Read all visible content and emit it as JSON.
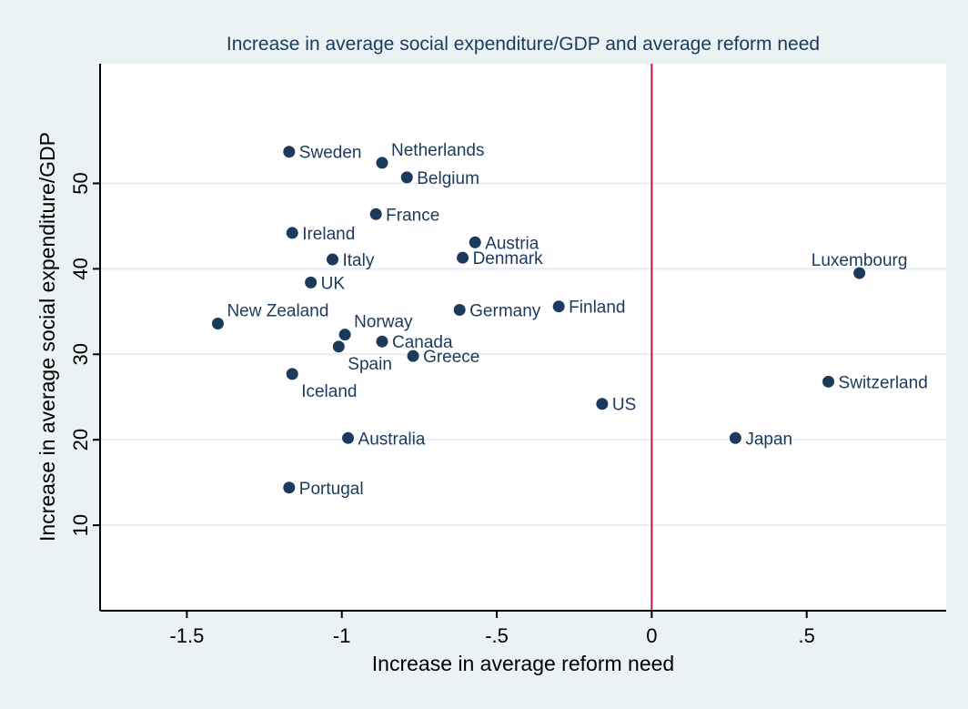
{
  "chart_data": {
    "type": "scatter",
    "title": "Increase in average social expenditure/GDP and average reform need",
    "xlabel": "Increase in average reform need",
    "ylabel": "Increase in average social expenditure/GDP",
    "xlim": [
      -1.78,
      0.95
    ],
    "ylim": [
      0,
      64
    ],
    "xticks": [
      {
        "value": -1.5,
        "label": "-1.5"
      },
      {
        "value": -1,
        "label": "-1"
      },
      {
        "value": -0.5,
        "label": "-.5"
      },
      {
        "value": 0,
        "label": "0"
      },
      {
        "value": 0.5,
        "label": ".5"
      }
    ],
    "yticks": [
      {
        "value": 10,
        "label": "10"
      },
      {
        "value": 20,
        "label": "20"
      },
      {
        "value": 30,
        "label": "30"
      },
      {
        "value": 40,
        "label": "40"
      },
      {
        "value": 50,
        "label": "50"
      }
    ],
    "grid": "horizontal",
    "reference_line": {
      "x": 0,
      "color": "#c0163c"
    },
    "colors": {
      "marker": "#1b3a5c",
      "label": "#1b3a5c",
      "plot_bg": "#ffffff",
      "frame_bg": "#eaf2f3"
    },
    "points": [
      {
        "label": "Sweden",
        "x": -1.17,
        "y": 53.7,
        "pos": "right"
      },
      {
        "label": "Netherlands",
        "x": -0.87,
        "y": 52.4,
        "pos": "upper-right"
      },
      {
        "label": "Belgium",
        "x": -0.79,
        "y": 50.7,
        "pos": "right"
      },
      {
        "label": "France",
        "x": -0.89,
        "y": 46.4,
        "pos": "right"
      },
      {
        "label": "Ireland",
        "x": -1.16,
        "y": 44.2,
        "pos": "right"
      },
      {
        "label": "Austria",
        "x": -0.57,
        "y": 43.1,
        "pos": "right"
      },
      {
        "label": "Italy",
        "x": -1.03,
        "y": 41.1,
        "pos": "right"
      },
      {
        "label": "Denmark",
        "x": -0.61,
        "y": 41.3,
        "pos": "right"
      },
      {
        "label": "UK",
        "x": -1.1,
        "y": 38.4,
        "pos": "right"
      },
      {
        "label": "Luxembourg",
        "x": 0.67,
        "y": 39.5,
        "pos": "above"
      },
      {
        "label": "New Zealand",
        "x": -1.4,
        "y": 33.6,
        "pos": "upper-right"
      },
      {
        "label": "Germany",
        "x": -0.62,
        "y": 35.2,
        "pos": "right"
      },
      {
        "label": "Finland",
        "x": -0.3,
        "y": 35.6,
        "pos": "right"
      },
      {
        "label": "Norway",
        "x": -0.99,
        "y": 32.3,
        "pos": "upper-right"
      },
      {
        "label": "Canada",
        "x": -0.87,
        "y": 31.5,
        "pos": "right"
      },
      {
        "label": "Spain",
        "x": -1.01,
        "y": 30.9,
        "pos": "lower-right"
      },
      {
        "label": "Greece",
        "x": -0.77,
        "y": 29.8,
        "pos": "right"
      },
      {
        "label": "Iceland",
        "x": -1.16,
        "y": 27.7,
        "pos": "lower-right"
      },
      {
        "label": "Switzerland",
        "x": 0.57,
        "y": 26.8,
        "pos": "right"
      },
      {
        "label": "US",
        "x": -0.16,
        "y": 24.2,
        "pos": "right"
      },
      {
        "label": "Australia",
        "x": -0.98,
        "y": 20.2,
        "pos": "right"
      },
      {
        "label": "Japan",
        "x": 0.27,
        "y": 20.2,
        "pos": "right"
      },
      {
        "label": "Portugal",
        "x": -1.17,
        "y": 14.4,
        "pos": "right"
      }
    ]
  }
}
